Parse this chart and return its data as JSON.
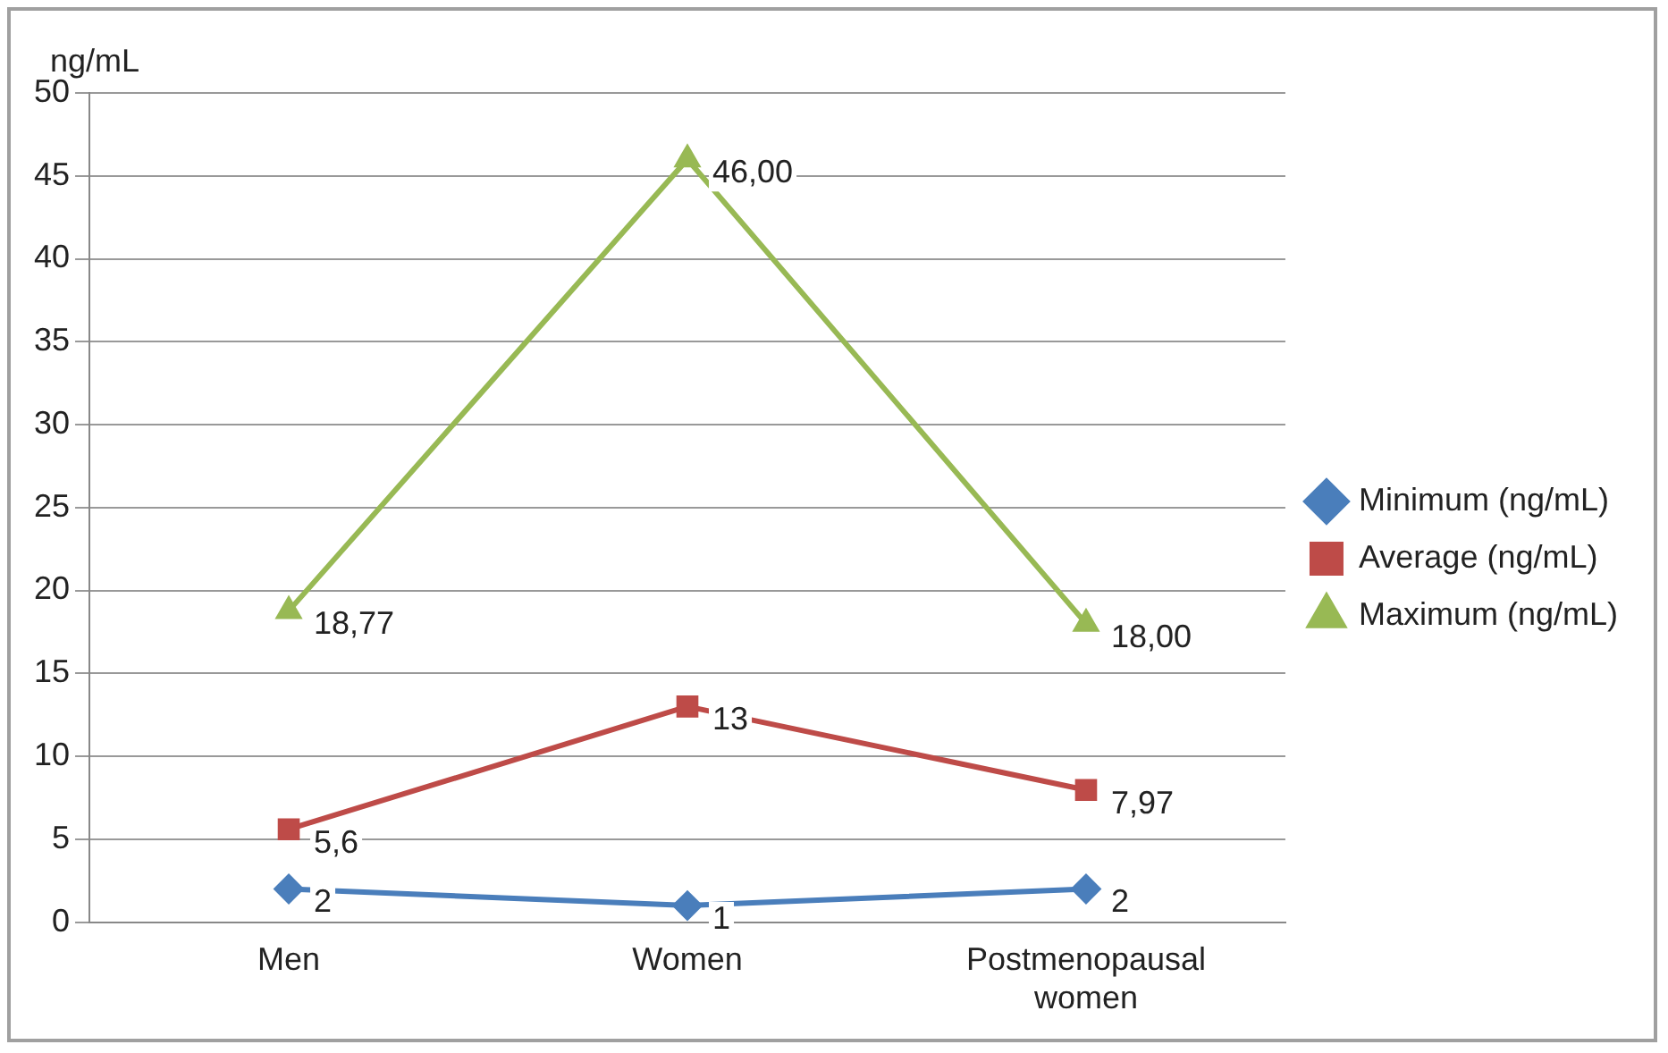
{
  "chart_data": {
    "type": "line",
    "ylabel": "ng/mL",
    "categories": [
      "Men",
      "Women",
      "Postmenopausal women"
    ],
    "ylim": [
      0,
      50
    ],
    "yticks": [
      0,
      5,
      10,
      15,
      20,
      25,
      30,
      35,
      40,
      45,
      50
    ],
    "grid": "y",
    "legend": "right",
    "series": [
      {
        "name": "Minimum (ng/mL)",
        "color": "#4a7ebb",
        "marker": "diamond",
        "values": [
          2,
          1,
          2
        ],
        "value_labels": [
          "2",
          "1",
          "2"
        ]
      },
      {
        "name": "Average (ng/mL)",
        "color": "#be4b48",
        "marker": "square",
        "values": [
          5.6,
          13,
          7.97
        ],
        "value_labels": [
          "5,6",
          "13",
          "7,97"
        ]
      },
      {
        "name": "Maximum (ng/mL)",
        "color": "#98b954",
        "marker": "triangle",
        "values": [
          18.77,
          46.0,
          18.0
        ],
        "value_labels": [
          "18,77",
          "46,00",
          "18,00"
        ]
      }
    ]
  }
}
